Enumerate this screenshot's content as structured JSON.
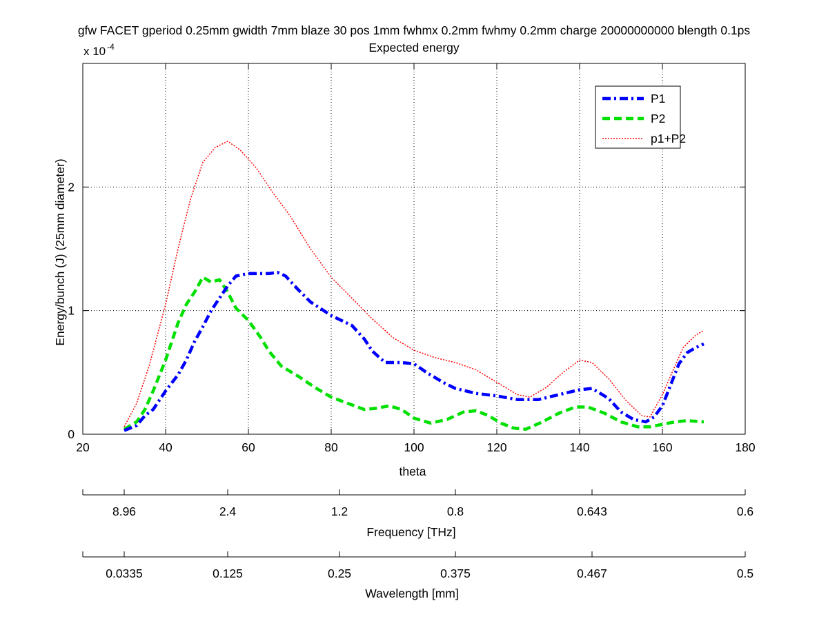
{
  "chart_data": {
    "type": "line",
    "title": "gfw FACET gperiod 0.25mm gwidth 7mm blaze 30 pos 1mm fwhmx 0.2mm fwhmy 0.2mm charge 20000000000 blength 0.1ps",
    "subtitle": "Expected energy",
    "xlabel": "theta",
    "ylabel": "Energy/bunch (J) (25mm diameter)",
    "y_exponent_label": "x 10",
    "y_exponent_power": "-4",
    "xlim": [
      20,
      180
    ],
    "ylim": [
      0,
      3
    ],
    "x_ticks": [
      20,
      40,
      60,
      80,
      100,
      120,
      140,
      160,
      180
    ],
    "x_tick_labels": [
      "20",
      "40",
      "60",
      "80",
      "100",
      "120",
      "140",
      "160",
      "180"
    ],
    "y_ticks": [
      0,
      1,
      2
    ],
    "y_tick_labels": [
      "0",
      "1",
      "2"
    ],
    "grid": true,
    "legend_position": "top-right",
    "secondary_axes": [
      {
        "label": "Frequency [THz]",
        "ticks_at_theta": [
          20,
          30,
          55,
          82,
          110,
          143,
          180
        ],
        "tick_labels": [
          "",
          "8.96",
          "2.4",
          "1.2",
          "0.8",
          "0.643",
          "0.6"
        ]
      },
      {
        "label": "Wavelength [mm]",
        "ticks_at_theta": [
          20,
          30,
          55,
          82,
          110,
          143,
          180
        ],
        "tick_labels": [
          "",
          "0.0335",
          "0.125",
          "0.25",
          "0.375",
          "0.467",
          "0.5"
        ]
      }
    ],
    "series": [
      {
        "name": "P1",
        "color": "#0000ff",
        "style": "dashdot",
        "x": [
          30,
          33,
          35,
          37,
          40,
          43,
          45,
          47,
          49,
          51,
          53,
          55,
          57,
          60,
          63,
          65,
          67,
          69,
          72,
          75,
          80,
          85,
          88,
          90,
          93,
          97,
          100,
          103,
          107,
          110,
          115,
          120,
          125,
          130,
          135,
          140,
          143,
          147,
          150,
          153,
          156,
          158,
          160,
          162,
          164,
          166,
          168,
          170
        ],
        "y": [
          0.03,
          0.07,
          0.15,
          0.2,
          0.35,
          0.48,
          0.6,
          0.75,
          0.87,
          1.0,
          1.1,
          1.2,
          1.28,
          1.3,
          1.3,
          1.3,
          1.31,
          1.28,
          1.17,
          1.07,
          0.96,
          0.88,
          0.77,
          0.67,
          0.58,
          0.58,
          0.57,
          0.5,
          0.42,
          0.37,
          0.33,
          0.31,
          0.28,
          0.28,
          0.32,
          0.36,
          0.37,
          0.29,
          0.18,
          0.12,
          0.1,
          0.14,
          0.23,
          0.4,
          0.57,
          0.66,
          0.7,
          0.73
        ]
      },
      {
        "name": "P2",
        "color": "#00e000",
        "style": "dashed",
        "x": [
          30,
          33,
          35,
          37,
          40,
          43,
          45,
          47,
          49,
          51,
          53,
          55,
          57,
          60,
          63,
          65,
          68,
          72,
          76,
          80,
          84,
          88,
          91,
          94,
          97,
          100,
          104,
          108,
          112,
          115,
          118,
          121,
          124,
          127,
          131,
          135,
          139,
          142,
          146,
          150,
          154,
          157,
          160,
          163,
          166,
          170
        ],
        "y": [
          0.04,
          0.1,
          0.2,
          0.35,
          0.6,
          0.9,
          1.05,
          1.15,
          1.27,
          1.23,
          1.25,
          1.15,
          1.02,
          0.92,
          0.78,
          0.67,
          0.55,
          0.47,
          0.38,
          0.3,
          0.25,
          0.2,
          0.21,
          0.23,
          0.2,
          0.13,
          0.09,
          0.12,
          0.18,
          0.19,
          0.15,
          0.09,
          0.05,
          0.04,
          0.1,
          0.17,
          0.22,
          0.22,
          0.17,
          0.1,
          0.06,
          0.06,
          0.08,
          0.1,
          0.11,
          0.1
        ]
      },
      {
        "name": "p1+P2",
        "color": "#ff0000",
        "style": "dotted",
        "x": [
          30,
          33,
          36,
          40,
          43,
          46,
          49,
          52,
          55,
          58,
          62,
          66,
          70,
          75,
          80,
          85,
          90,
          95,
          100,
          105,
          110,
          115,
          120,
          125,
          128,
          132,
          136,
          140,
          143,
          147,
          151,
          155,
          157,
          160,
          163,
          165,
          168,
          170
        ],
        "y": [
          0.06,
          0.25,
          0.55,
          1.05,
          1.5,
          1.9,
          2.2,
          2.32,
          2.37,
          2.3,
          2.15,
          1.95,
          1.77,
          1.5,
          1.27,
          1.1,
          0.93,
          0.78,
          0.68,
          0.62,
          0.58,
          0.52,
          0.42,
          0.32,
          0.3,
          0.38,
          0.5,
          0.6,
          0.58,
          0.45,
          0.28,
          0.15,
          0.14,
          0.32,
          0.55,
          0.7,
          0.8,
          0.84
        ]
      }
    ]
  }
}
